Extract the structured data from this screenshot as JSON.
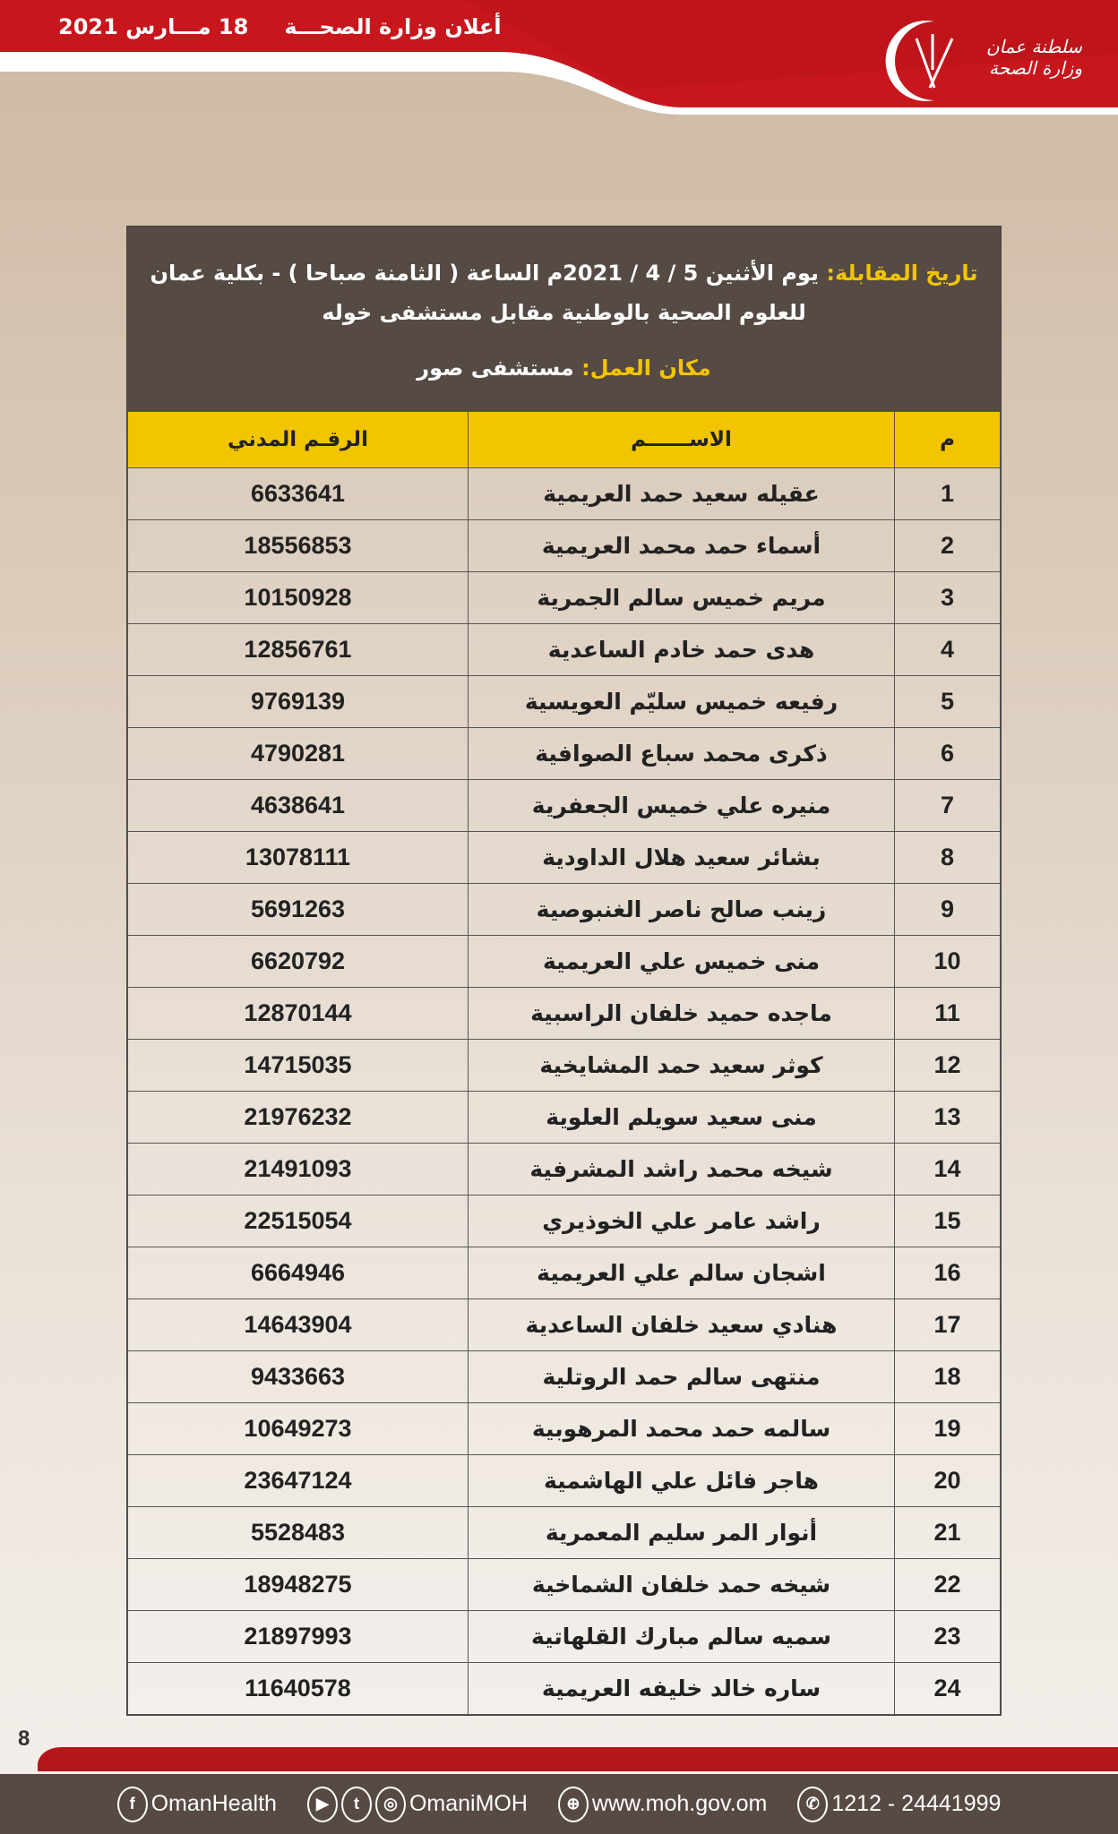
{
  "header": {
    "title": "أعلان وزارة الصحـــة",
    "date": "18 مـــارس 2021",
    "logo_text": [
      "سلطنة عمان",
      "وزارة الصحة"
    ],
    "colors": {
      "red": "#c8161d",
      "brown": "#554a44",
      "yellow": "#f2c500"
    }
  },
  "info": {
    "date_label": "تاريخ المقابلة:",
    "date_text": "يوم الأثنين  5 / 4 / 2021م  الساعة ( الثامنة صباحا ) - بكلية عمان للعلوم الصحية بالوطنية مقابل مستشفى خوله",
    "place_label": "مكان العمل:",
    "place_text": "مستشفى صور"
  },
  "table": {
    "headers": [
      "م",
      "الاســــــم",
      "الرقـم المدني"
    ],
    "rows": [
      [
        "1",
        "عقيله سعيد حمد العريمية",
        "6633641"
      ],
      [
        "2",
        "أسماء حمد محمد العريمية",
        "18556853"
      ],
      [
        "3",
        "مريم خميس سالم الجمرية",
        "10150928"
      ],
      [
        "4",
        "هدى حمد خادم الساعدية",
        "12856761"
      ],
      [
        "5",
        "رفيعه خميس سليّم العويسية",
        "9769139"
      ],
      [
        "6",
        "ذكرى محمد سباع الصوافية",
        "4790281"
      ],
      [
        "7",
        "منيره علي خميس الجعفرية",
        "4638641"
      ],
      [
        "8",
        "بشائر سعيد هلال الداودية",
        "13078111"
      ],
      [
        "9",
        "زينب صالح ناصر الغنبوصية",
        "5691263"
      ],
      [
        "10",
        "منى خميس علي العريمية",
        "6620792"
      ],
      [
        "11",
        "ماجده حميد خلفان الراسبية",
        "12870144"
      ],
      [
        "12",
        "كوثر سعيد حمد المشايخية",
        "14715035"
      ],
      [
        "13",
        "منى سعيد سويلم العلوية",
        "21976232"
      ],
      [
        "14",
        "شيخه محمد راشد المشرفية",
        "21491093"
      ],
      [
        "15",
        "راشد عامر علي الخوذيري",
        "22515054"
      ],
      [
        "16",
        "اشجان سالم علي العريمية",
        "6664946"
      ],
      [
        "17",
        "هنادي سعيد خلفان الساعدية",
        "14643904"
      ],
      [
        "18",
        "منتهى سالم حمد الروتلية",
        "9433663"
      ],
      [
        "19",
        "سالمه حمد محمد المرهوبية",
        "10649273"
      ],
      [
        "20",
        "هاجر فائل علي الهاشمية",
        "23647124"
      ],
      [
        "21",
        "أنوار المر سليم المعمرية",
        "5528483"
      ],
      [
        "22",
        "شيخه حمد خلفان الشماخية",
        "18948275"
      ],
      [
        "23",
        "سميه سالم مبارك القلهاتية",
        "21897993"
      ],
      [
        "24",
        "ساره خالد خليفه العريمية",
        "11640578"
      ]
    ]
  },
  "page_number": "8",
  "footer": {
    "facebook": "OmanHealth",
    "social": "OmaniMOH",
    "website": "www.moh.gov.om",
    "phone": "1212 - 24441999"
  }
}
